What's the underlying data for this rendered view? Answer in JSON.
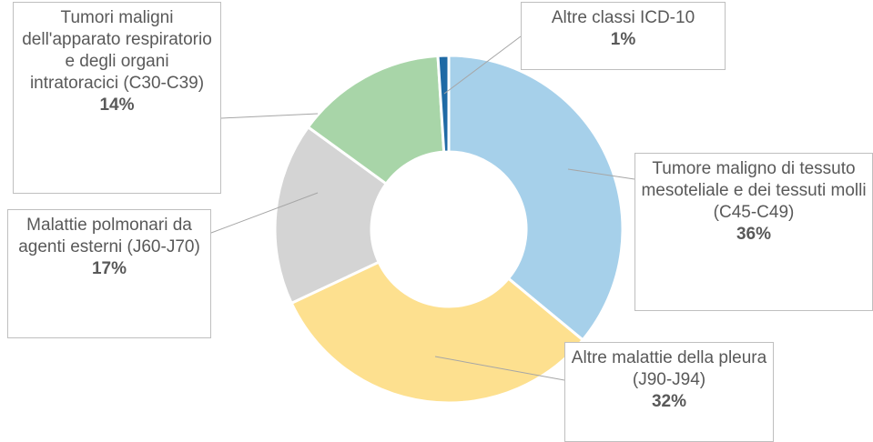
{
  "chart_data": {
    "type": "donut",
    "categories": [
      "Tumore maligno di tessuto mesoteliale e dei tessuti molli (C45-C49)",
      "Altre malattie della pleura (J90-J94)",
      "Malattie polmonari da agenti esterni (J60-J70)",
      "Tumori maligni dell'apparato respiratorio e degli organi intratoracici (C30-C39)",
      "Altre classi ICD-10"
    ],
    "values": [
      36,
      32,
      17,
      14,
      1
    ],
    "value_labels": [
      "36%",
      "32%",
      "17%",
      "14%",
      "1%"
    ],
    "colors": [
      "#a6d0ea",
      "#fde08f",
      "#d4d4d4",
      "#a8d5a8",
      "#1f6aa5"
    ]
  }
}
